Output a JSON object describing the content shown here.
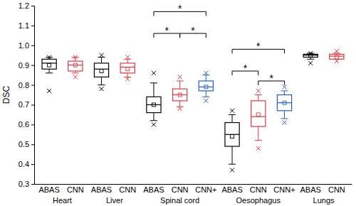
{
  "chart_data": {
    "type": "box",
    "ylabel": "DSC",
    "ylim": [
      0.3,
      1.2
    ],
    "yticks": [
      0.3,
      0.4,
      0.5,
      0.6,
      0.7,
      0.8,
      0.9,
      {
        "value": 1,
        "label": "1.0"
      },
      1.1,
      1.2
    ],
    "categories": [
      "Heart",
      "Liver",
      "Spinal cord",
      "Oesophagus",
      "Lungs"
    ],
    "series": [
      {
        "name": "ABAS",
        "color": "#000000",
        "values": [
          {
            "min": 0.77,
            "whisker_low": 0.86,
            "q1": 0.88,
            "median": 0.91,
            "q3": 0.93,
            "whisker_high": 0.94,
            "max": 0.94,
            "mean": 0.9
          },
          {
            "min": 0.78,
            "whisker_low": 0.8,
            "q1": 0.84,
            "median": 0.88,
            "q3": 0.91,
            "whisker_high": 0.94,
            "max": 0.95,
            "mean": 0.87
          },
          {
            "min": 0.6,
            "whisker_low": 0.62,
            "q1": 0.66,
            "median": 0.7,
            "q3": 0.74,
            "whisker_high": 0.81,
            "max": 0.86,
            "mean": 0.7
          },
          {
            "min": 0.37,
            "whisker_low": 0.4,
            "q1": 0.49,
            "median": 0.55,
            "q3": 0.61,
            "whisker_high": 0.65,
            "max": 0.67,
            "mean": 0.54
          },
          {
            "min": 0.91,
            "whisker_low": 0.93,
            "q1": 0.94,
            "median": 0.95,
            "q3": 0.955,
            "whisker_high": 0.96,
            "max": 0.96,
            "mean": 0.95
          }
        ]
      },
      {
        "name": "CNN",
        "color": "#e8353f",
        "values": [
          {
            "min": 0.84,
            "whisker_low": 0.86,
            "q1": 0.87,
            "median": 0.9,
            "q3": 0.92,
            "whisker_high": 0.94,
            "max": 0.94,
            "mean": 0.9
          },
          {
            "min": 0.83,
            "whisker_low": 0.84,
            "q1": 0.86,
            "median": 0.89,
            "q3": 0.91,
            "whisker_high": 0.93,
            "max": 0.94,
            "mean": 0.88
          },
          {
            "min": 0.68,
            "whisker_low": 0.69,
            "q1": 0.72,
            "median": 0.75,
            "q3": 0.78,
            "whisker_high": 0.82,
            "max": 0.84,
            "mean": 0.75
          },
          {
            "min": 0.48,
            "whisker_low": 0.52,
            "q1": 0.59,
            "median": 0.64,
            "q3": 0.72,
            "whisker_high": 0.75,
            "max": 0.77,
            "mean": 0.65
          },
          {
            "min": 0.92,
            "whisker_low": 0.93,
            "q1": 0.93,
            "median": 0.945,
            "q3": 0.955,
            "whisker_high": 0.96,
            "max": 0.97,
            "mean": 0.94
          }
        ]
      },
      {
        "name": "CNN+",
        "color": "#1f5fc9",
        "values": [
          null,
          null,
          {
            "min": 0.72,
            "whisker_low": 0.74,
            "q1": 0.77,
            "median": 0.79,
            "q3": 0.82,
            "whisker_high": 0.85,
            "max": 0.86,
            "mean": 0.79
          },
          {
            "min": 0.61,
            "whisker_low": 0.63,
            "q1": 0.67,
            "median": 0.71,
            "q3": 0.75,
            "whisker_high": 0.77,
            "max": 0.79,
            "mean": 0.71
          },
          null
        ]
      }
    ],
    "significance": [
      {
        "group": "Spinal cord",
        "from": "ABAS",
        "to": "CNN+",
        "y": 1.17,
        "label": "*"
      },
      {
        "group": "Spinal cord",
        "from": "ABAS",
        "to": "CNN",
        "y": 1.06,
        "label": "*"
      },
      {
        "group": "Spinal cord",
        "from": "CNN",
        "to": "CNN+",
        "y": 1.06,
        "label": "*"
      },
      {
        "group": "Oesophagus",
        "from": "ABAS",
        "to": "CNN+",
        "y": 0.98,
        "label": "*"
      },
      {
        "group": "Oesophagus",
        "from": "ABAS",
        "to": "CNN",
        "y": 0.87,
        "label": "*"
      },
      {
        "group": "Oesophagus",
        "from": "CNN",
        "to": "CNN+",
        "y": 0.82,
        "label": "*"
      }
    ]
  }
}
